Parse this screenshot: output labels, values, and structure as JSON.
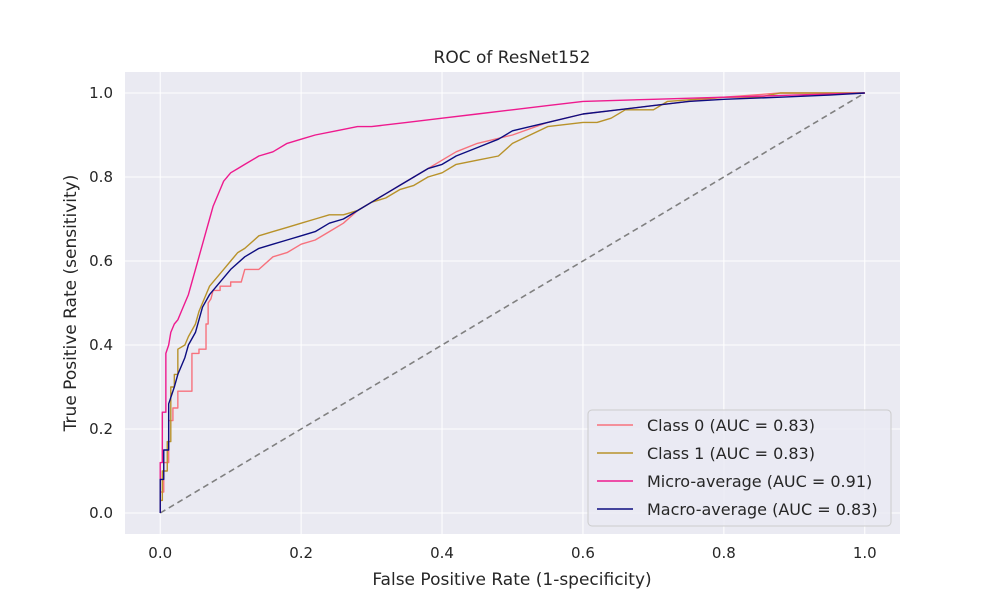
{
  "chart_data": {
    "type": "line",
    "title": "ROC of ResNet152",
    "xlabel": "False Positive Rate (1-specificity)",
    "ylabel": "True Positive Rate (sensitivity)",
    "xlim": [
      -0.05,
      1.05
    ],
    "ylim": [
      -0.05,
      1.05
    ],
    "xticks": [
      "0.0",
      "0.2",
      "0.4",
      "0.6",
      "0.8",
      "1.0"
    ],
    "yticks": [
      "0.0",
      "0.2",
      "0.4",
      "0.6",
      "0.8",
      "1.0"
    ],
    "grid": true,
    "legend_position": "lower-right",
    "series": [
      {
        "name": "Class 0 (AUC = 0.83)",
        "color": "#f7727d",
        "x": [
          0.0,
          0.0,
          0.005,
          0.005,
          0.012,
          0.012,
          0.018,
          0.018,
          0.025,
          0.025,
          0.03,
          0.03,
          0.045,
          0.045,
          0.055,
          0.055,
          0.065,
          0.065,
          0.068,
          0.068,
          0.072,
          0.075,
          0.085,
          0.085,
          0.1,
          0.1,
          0.115,
          0.12,
          0.14,
          0.16,
          0.18,
          0.2,
          0.22,
          0.24,
          0.26,
          0.28,
          0.3,
          0.32,
          0.34,
          0.36,
          0.38,
          0.4,
          0.42,
          0.45,
          0.5,
          0.55,
          0.6,
          0.65,
          0.7,
          0.75,
          0.8,
          0.88,
          0.95,
          1.0
        ],
        "y": [
          0.0,
          0.05,
          0.05,
          0.12,
          0.12,
          0.22,
          0.22,
          0.25,
          0.25,
          0.29,
          0.29,
          0.29,
          0.29,
          0.38,
          0.38,
          0.39,
          0.39,
          0.45,
          0.45,
          0.5,
          0.51,
          0.53,
          0.53,
          0.54,
          0.54,
          0.55,
          0.55,
          0.58,
          0.58,
          0.61,
          0.62,
          0.64,
          0.65,
          0.67,
          0.69,
          0.72,
          0.74,
          0.76,
          0.78,
          0.8,
          0.82,
          0.84,
          0.86,
          0.88,
          0.9,
          0.93,
          0.95,
          0.96,
          0.97,
          0.98,
          0.99,
          1.0,
          1.0,
          1.0
        ]
      },
      {
        "name": "Class 1 (AUC = 0.83)",
        "color": "#b8922a",
        "x": [
          0.0,
          0.0,
          0.003,
          0.003,
          0.01,
          0.01,
          0.015,
          0.015,
          0.02,
          0.02,
          0.025,
          0.025,
          0.035,
          0.04,
          0.05,
          0.055,
          0.06,
          0.065,
          0.07,
          0.08,
          0.09,
          0.1,
          0.11,
          0.12,
          0.14,
          0.16,
          0.18,
          0.2,
          0.22,
          0.24,
          0.26,
          0.28,
          0.3,
          0.32,
          0.34,
          0.36,
          0.38,
          0.4,
          0.42,
          0.45,
          0.48,
          0.5,
          0.55,
          0.6,
          0.62,
          0.64,
          0.66,
          0.7,
          0.72,
          0.8,
          0.85,
          0.88,
          0.95,
          1.0
        ],
        "y": [
          0.0,
          0.03,
          0.03,
          0.1,
          0.1,
          0.17,
          0.17,
          0.3,
          0.3,
          0.33,
          0.33,
          0.39,
          0.4,
          0.42,
          0.45,
          0.48,
          0.5,
          0.52,
          0.54,
          0.56,
          0.58,
          0.6,
          0.62,
          0.63,
          0.66,
          0.67,
          0.68,
          0.69,
          0.7,
          0.71,
          0.71,
          0.72,
          0.74,
          0.75,
          0.77,
          0.78,
          0.8,
          0.81,
          0.83,
          0.84,
          0.85,
          0.88,
          0.92,
          0.93,
          0.93,
          0.94,
          0.96,
          0.96,
          0.98,
          0.99,
          0.99,
          1.0,
          1.0,
          1.0
        ]
      },
      {
        "name": "Micro-average (AUC = 0.91)",
        "color": "#ee1a8e",
        "x": [
          0.0,
          0.0,
          0.003,
          0.003,
          0.008,
          0.008,
          0.012,
          0.015,
          0.02,
          0.025,
          0.03,
          0.04,
          0.045,
          0.05,
          0.055,
          0.06,
          0.065,
          0.07,
          0.075,
          0.08,
          0.085,
          0.09,
          0.1,
          0.11,
          0.12,
          0.14,
          0.16,
          0.18,
          0.2,
          0.22,
          0.25,
          0.28,
          0.3,
          0.35,
          0.4,
          0.45,
          0.5,
          0.55,
          0.6,
          0.7,
          0.8,
          0.9,
          1.0
        ],
        "y": [
          0.0,
          0.12,
          0.12,
          0.24,
          0.24,
          0.38,
          0.4,
          0.43,
          0.45,
          0.46,
          0.48,
          0.52,
          0.55,
          0.58,
          0.61,
          0.64,
          0.67,
          0.7,
          0.73,
          0.75,
          0.77,
          0.79,
          0.81,
          0.82,
          0.83,
          0.85,
          0.86,
          0.88,
          0.89,
          0.9,
          0.91,
          0.92,
          0.92,
          0.93,
          0.94,
          0.95,
          0.96,
          0.97,
          0.98,
          0.985,
          0.99,
          0.995,
          1.0
        ]
      },
      {
        "name": "Macro-average (AUC = 0.83)",
        "color": "#0d0d80",
        "x": [
          0.0,
          0.0,
          0.005,
          0.005,
          0.012,
          0.012,
          0.02,
          0.025,
          0.035,
          0.04,
          0.05,
          0.055,
          0.06,
          0.07,
          0.08,
          0.09,
          0.1,
          0.12,
          0.14,
          0.16,
          0.18,
          0.2,
          0.22,
          0.24,
          0.26,
          0.28,
          0.3,
          0.32,
          0.34,
          0.36,
          0.38,
          0.4,
          0.42,
          0.45,
          0.48,
          0.5,
          0.55,
          0.6,
          0.65,
          0.7,
          0.75,
          0.8,
          0.88,
          0.95,
          1.0
        ],
        "y": [
          0.0,
          0.08,
          0.08,
          0.15,
          0.15,
          0.26,
          0.3,
          0.33,
          0.37,
          0.4,
          0.43,
          0.46,
          0.49,
          0.52,
          0.54,
          0.56,
          0.58,
          0.61,
          0.63,
          0.64,
          0.65,
          0.66,
          0.67,
          0.69,
          0.7,
          0.72,
          0.74,
          0.76,
          0.78,
          0.8,
          0.82,
          0.83,
          0.85,
          0.87,
          0.89,
          0.91,
          0.93,
          0.95,
          0.96,
          0.97,
          0.98,
          0.985,
          0.99,
          0.995,
          1.0
        ]
      }
    ],
    "reference_line": {
      "x": [
        0.0,
        1.0
      ],
      "y": [
        0.0,
        1.0
      ],
      "color": "#808080",
      "style": "dashed"
    },
    "colors": {
      "plot_background": "#eaeaf2",
      "grid": "#ffffff",
      "text": "#262626"
    }
  }
}
